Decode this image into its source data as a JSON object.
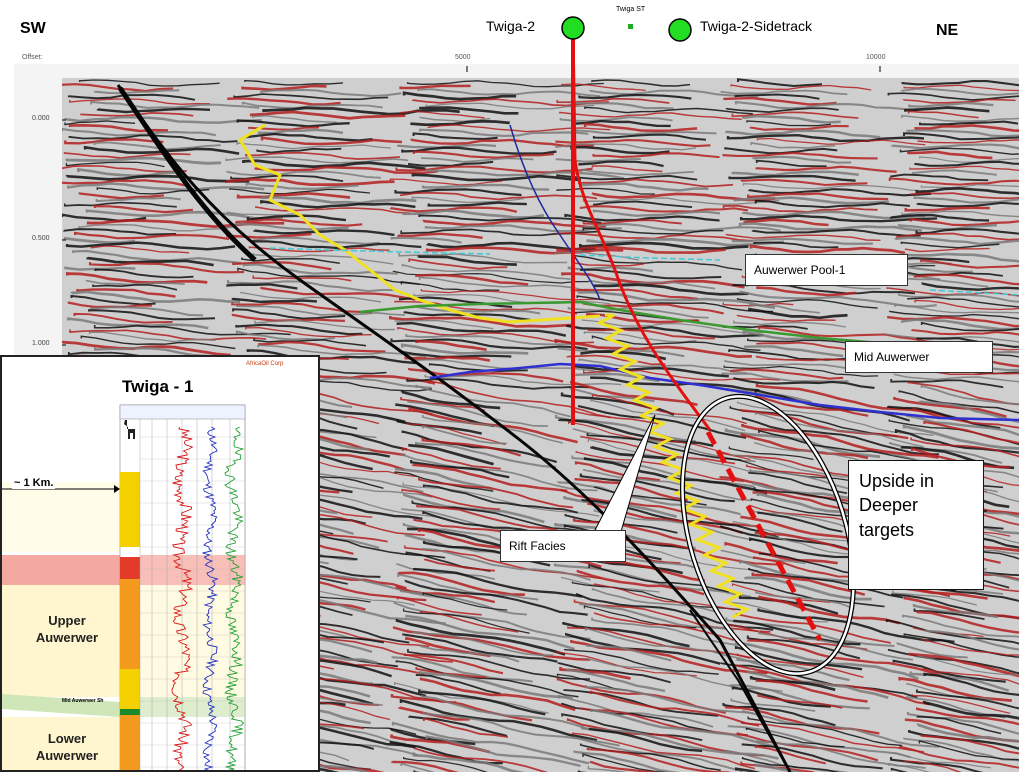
{
  "header": {
    "left_direction": "SW",
    "right_direction": "NE",
    "offset_label": "Offset:",
    "offset_ticks": [
      "5000",
      "10000"
    ],
    "well_1": "Twiga-2",
    "well_small": "Twiga ST",
    "well_2": "Twiga-2-Sidetrack"
  },
  "time_axis": {
    "ticks": [
      "0.000",
      "0.500",
      "1.000"
    ]
  },
  "callouts": {
    "auwerwer_pool": "Auwerwer Pool-1",
    "mid_auwerwer": "Mid Auwerwer",
    "rift_facies": "Rift Facies",
    "upside_deeper": "Upside in Deeper targets"
  },
  "inset": {
    "title": "Twiga - 1",
    "logo_text": "AfricaOil Corp",
    "scale_label": "~ 1 Km.",
    "upper_label": "Upper Auwerwer",
    "mid_label": "Mid Auwerwer Sh",
    "lower_label": "Lower Auwerwer"
  },
  "colors": {
    "well_marker": "#22dd22",
    "well_path": "#e41010",
    "horizon_yellow": "#f0e020",
    "horizon_cyan": "#40c8d8",
    "horizon_green": "#3a9a30",
    "horizon_blue": "#3030d0",
    "seismic_red": "#b41e1e",
    "seismic_black": "#111111"
  }
}
